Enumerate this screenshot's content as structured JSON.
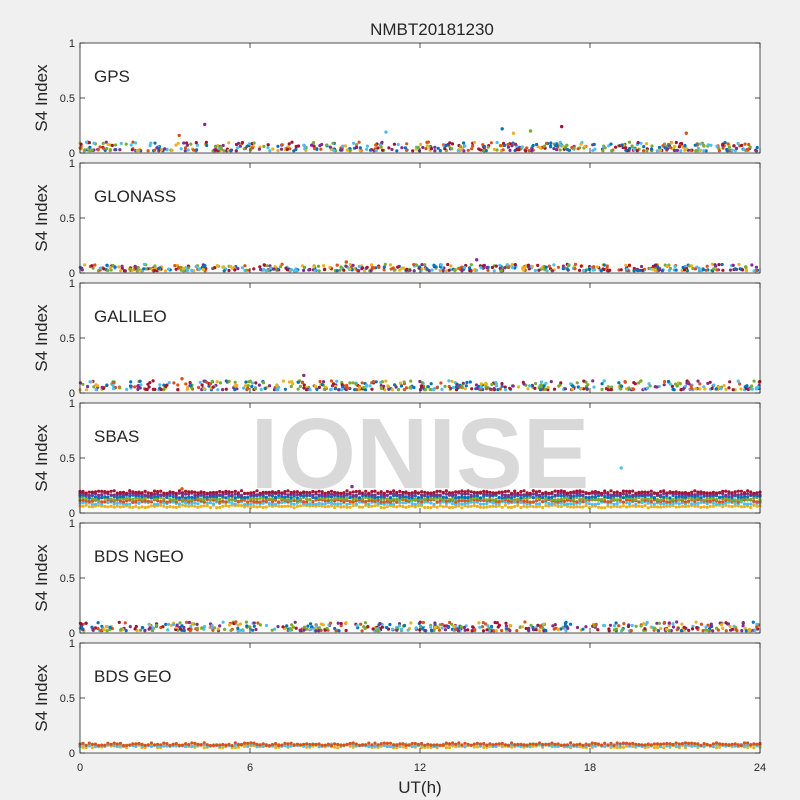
{
  "figure": {
    "title": "NMBT20181230",
    "xlabel": "UT(h)",
    "watermark": "IONISE",
    "background": "#f0f0f0",
    "axes_color": "#262626",
    "series_colors": [
      "#0072bd",
      "#d95319",
      "#edb120",
      "#7e2f8e",
      "#77ac30",
      "#4dbeee",
      "#a2142f"
    ]
  },
  "chart_data": [
    {
      "type": "scatter",
      "panel_label": "GPS",
      "ylabel": "S4 Index",
      "xlim": [
        0,
        24
      ],
      "ylim": [
        0,
        1
      ],
      "xticks": [],
      "yticks": [
        "0",
        "0.5",
        "1"
      ],
      "grid": false,
      "baseline_range": [
        0.02,
        0.1
      ],
      "outliers": [
        {
          "x": 3.5,
          "y": 0.16
        },
        {
          "x": 4.4,
          "y": 0.26
        },
        {
          "x": 10.8,
          "y": 0.19
        },
        {
          "x": 14.9,
          "y": 0.22
        },
        {
          "x": 15.3,
          "y": 0.18
        },
        {
          "x": 15.9,
          "y": 0.2
        },
        {
          "x": 17.0,
          "y": 0.24
        },
        {
          "x": 21.4,
          "y": 0.18
        }
      ]
    },
    {
      "type": "scatter",
      "panel_label": "GLONASS",
      "ylabel": "S4 Index",
      "xlim": [
        0,
        24
      ],
      "ylim": [
        0,
        1
      ],
      "xticks": [],
      "yticks": [
        "0",
        "0.5",
        "1"
      ],
      "grid": false,
      "baseline_range": [
        0.02,
        0.08
      ],
      "outliers": [
        {
          "x": 9.4,
          "y": 0.1
        },
        {
          "x": 14.0,
          "y": 0.12
        }
      ]
    },
    {
      "type": "scatter",
      "panel_label": "GALILEO",
      "ylabel": "S4 Index",
      "xlim": [
        0,
        24
      ],
      "ylim": [
        0,
        1
      ],
      "xticks": [],
      "yticks": [
        "0",
        "0.5",
        "1"
      ],
      "grid": false,
      "baseline_range": [
        0.03,
        0.11
      ],
      "outliers": [
        {
          "x": 3.6,
          "y": 0.13
        },
        {
          "x": 7.9,
          "y": 0.16
        },
        {
          "x": 18.5,
          "y": 0.11
        }
      ]
    },
    {
      "type": "scatter",
      "panel_label": "SBAS",
      "ylabel": "S4 Index",
      "xlim": [
        0,
        24
      ],
      "ylim": [
        0,
        1
      ],
      "xticks": [],
      "yticks": [
        "0",
        "0.5",
        "1"
      ],
      "grid": false,
      "bands": [
        0.06,
        0.09,
        0.11,
        0.13,
        0.15,
        0.17,
        0.19
      ],
      "outliers": [
        {
          "x": 3.6,
          "y": 0.22
        },
        {
          "x": 9.6,
          "y": 0.24
        },
        {
          "x": 19.1,
          "y": 0.41
        }
      ]
    },
    {
      "type": "scatter",
      "panel_label": "BDS NGEO",
      "ylabel": "S4 Index",
      "xlim": [
        0,
        24
      ],
      "ylim": [
        0,
        1
      ],
      "xticks": [],
      "yticks": [
        "0",
        "0.5",
        "1"
      ],
      "grid": false,
      "baseline_range": [
        0.02,
        0.1
      ],
      "outliers": [
        {
          "x": 5.5,
          "y": 0.1
        },
        {
          "x": 20.8,
          "y": 0.09
        }
      ]
    },
    {
      "type": "scatter",
      "panel_label": "BDS GEO",
      "ylabel": "S4 Index",
      "xlim": [
        0,
        24
      ],
      "ylim": [
        0,
        1
      ],
      "xticks": [
        "0",
        "6",
        "12",
        "18",
        "24"
      ],
      "yticks": [
        "0",
        "0.5",
        "1"
      ],
      "grid": false,
      "bands": [
        0.06,
        0.07,
        0.08
      ],
      "outliers": []
    }
  ]
}
